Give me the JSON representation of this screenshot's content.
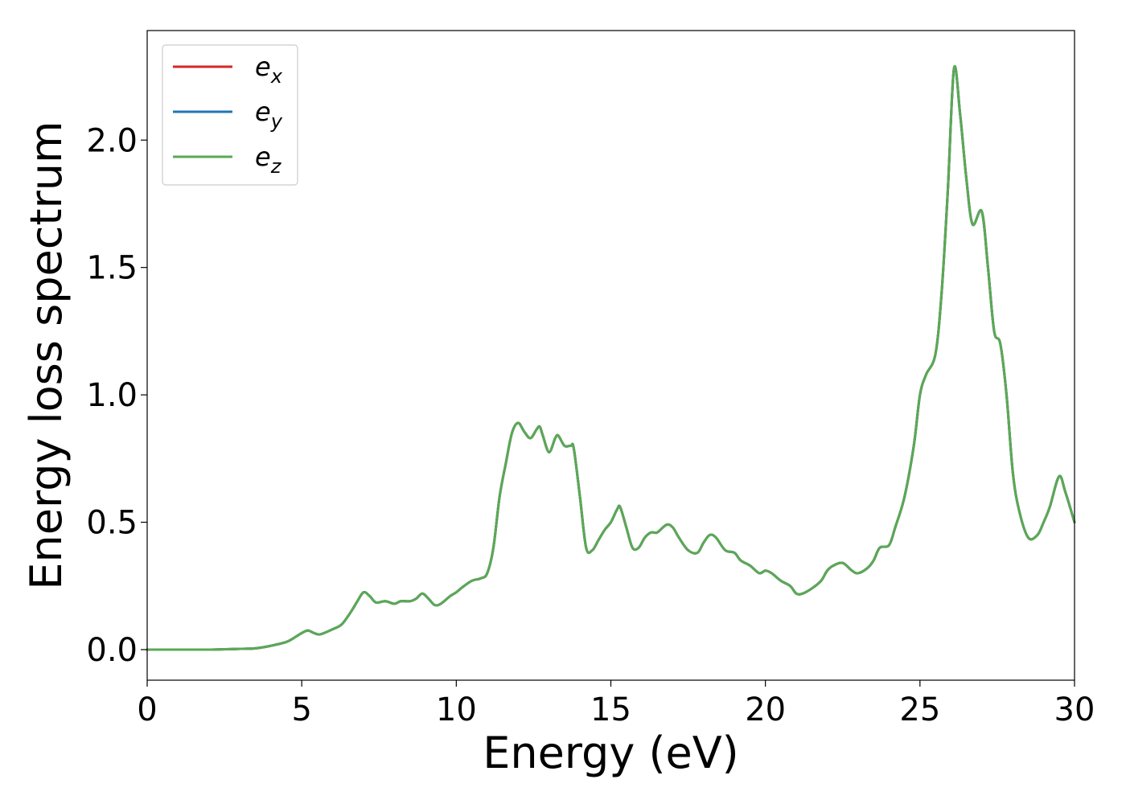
{
  "chart_data": {
    "type": "line",
    "xlabel": "Energy (eV)",
    "ylabel": "Energy loss spectrum",
    "xlim": [
      0,
      30
    ],
    "ylim": [
      -0.12,
      2.43
    ],
    "xticks": [
      0,
      5,
      10,
      15,
      20,
      25,
      30
    ],
    "xtick_labels": [
      "0",
      "5",
      "10",
      "15",
      "20",
      "25",
      "30"
    ],
    "yticks": [
      0.0,
      0.5,
      1.0,
      1.5,
      2.0
    ],
    "ytick_labels": [
      "0.0",
      "0.5",
      "1.0",
      "1.5",
      "2.0"
    ],
    "grid": false,
    "legend_position": "top-left",
    "x": [
      0,
      1,
      2,
      3,
      3.5,
      4,
      4.5,
      4.8,
      5.0,
      5.2,
      5.4,
      5.6,
      6.0,
      6.3,
      6.6,
      6.8,
      7.0,
      7.2,
      7.4,
      7.7,
      8.0,
      8.2,
      8.5,
      8.7,
      8.9,
      9.1,
      9.3,
      9.5,
      9.8,
      10.0,
      10.2,
      10.5,
      10.8,
      11.0,
      11.2,
      11.4,
      11.6,
      11.8,
      12.0,
      12.2,
      12.4,
      12.6,
      12.7,
      12.8,
      13.0,
      13.2,
      13.3,
      13.5,
      13.7,
      13.8,
      14.0,
      14.2,
      14.4,
      14.6,
      14.8,
      15.0,
      15.2,
      15.3,
      15.5,
      15.7,
      15.9,
      16.1,
      16.3,
      16.5,
      16.8,
      17.0,
      17.2,
      17.5,
      17.8,
      18.0,
      18.2,
      18.4,
      18.7,
      19.0,
      19.2,
      19.5,
      19.8,
      20.0,
      20.2,
      20.5,
      20.8,
      21.0,
      21.2,
      21.5,
      21.8,
      22.0,
      22.2,
      22.5,
      22.8,
      23.0,
      23.3,
      23.5,
      23.7,
      24.0,
      24.2,
      24.5,
      24.8,
      25.0,
      25.2,
      25.5,
      25.7,
      25.9,
      26.1,
      26.3,
      26.5,
      26.7,
      27.0,
      27.2,
      27.4,
      27.6,
      27.8,
      28.0,
      28.2,
      28.5,
      28.8,
      29.0,
      29.2,
      29.5,
      29.7,
      30.0
    ],
    "series": [
      {
        "name": "e_x",
        "color": "#d62728",
        "values": [
          0,
          0,
          0,
          0.003,
          0.005,
          0.015,
          0.03,
          0.05,
          0.065,
          0.075,
          0.065,
          0.06,
          0.08,
          0.1,
          0.15,
          0.19,
          0.225,
          0.21,
          0.185,
          0.19,
          0.18,
          0.19,
          0.19,
          0.2,
          0.22,
          0.2,
          0.175,
          0.18,
          0.21,
          0.225,
          0.245,
          0.27,
          0.28,
          0.3,
          0.4,
          0.6,
          0.73,
          0.85,
          0.89,
          0.855,
          0.83,
          0.865,
          0.875,
          0.84,
          0.775,
          0.83,
          0.84,
          0.8,
          0.8,
          0.79,
          0.6,
          0.4,
          0.39,
          0.43,
          0.47,
          0.5,
          0.55,
          0.56,
          0.48,
          0.4,
          0.4,
          0.44,
          0.46,
          0.46,
          0.49,
          0.48,
          0.44,
          0.39,
          0.38,
          0.42,
          0.45,
          0.44,
          0.39,
          0.38,
          0.35,
          0.33,
          0.3,
          0.31,
          0.3,
          0.27,
          0.25,
          0.22,
          0.22,
          0.24,
          0.27,
          0.31,
          0.33,
          0.34,
          0.31,
          0.3,
          0.32,
          0.35,
          0.4,
          0.41,
          0.48,
          0.6,
          0.8,
          1.0,
          1.08,
          1.16,
          1.4,
          1.8,
          2.28,
          2.1,
          1.85,
          1.67,
          1.72,
          1.5,
          1.25,
          1.2,
          1.0,
          0.7,
          0.55,
          0.44,
          0.45,
          0.5,
          0.56,
          0.68,
          0.62,
          0.5
        ]
      },
      {
        "name": "e_y",
        "color": "#1f77b4",
        "values": [
          0,
          0,
          0,
          0.003,
          0.005,
          0.015,
          0.03,
          0.05,
          0.065,
          0.075,
          0.065,
          0.06,
          0.08,
          0.1,
          0.15,
          0.19,
          0.225,
          0.21,
          0.185,
          0.19,
          0.18,
          0.19,
          0.19,
          0.2,
          0.22,
          0.2,
          0.175,
          0.18,
          0.21,
          0.225,
          0.245,
          0.27,
          0.28,
          0.3,
          0.4,
          0.6,
          0.73,
          0.85,
          0.89,
          0.855,
          0.83,
          0.865,
          0.875,
          0.84,
          0.775,
          0.83,
          0.84,
          0.8,
          0.8,
          0.79,
          0.6,
          0.4,
          0.39,
          0.43,
          0.47,
          0.5,
          0.55,
          0.56,
          0.48,
          0.4,
          0.4,
          0.44,
          0.46,
          0.46,
          0.49,
          0.48,
          0.44,
          0.39,
          0.38,
          0.42,
          0.45,
          0.44,
          0.39,
          0.38,
          0.35,
          0.33,
          0.3,
          0.31,
          0.3,
          0.27,
          0.25,
          0.22,
          0.22,
          0.24,
          0.27,
          0.31,
          0.33,
          0.34,
          0.31,
          0.3,
          0.32,
          0.35,
          0.4,
          0.41,
          0.48,
          0.6,
          0.8,
          1.0,
          1.08,
          1.16,
          1.4,
          1.8,
          2.28,
          2.1,
          1.85,
          1.67,
          1.72,
          1.5,
          1.25,
          1.2,
          1.0,
          0.7,
          0.55,
          0.44,
          0.45,
          0.5,
          0.56,
          0.68,
          0.62,
          0.5
        ]
      },
      {
        "name": "e_z",
        "color": "#5aa954",
        "values": [
          0,
          0,
          0,
          0.003,
          0.005,
          0.015,
          0.03,
          0.05,
          0.065,
          0.075,
          0.065,
          0.06,
          0.08,
          0.1,
          0.15,
          0.19,
          0.225,
          0.21,
          0.185,
          0.19,
          0.18,
          0.19,
          0.19,
          0.2,
          0.22,
          0.2,
          0.175,
          0.18,
          0.21,
          0.225,
          0.245,
          0.27,
          0.28,
          0.3,
          0.4,
          0.6,
          0.73,
          0.85,
          0.89,
          0.855,
          0.83,
          0.865,
          0.875,
          0.84,
          0.775,
          0.83,
          0.84,
          0.8,
          0.8,
          0.79,
          0.6,
          0.4,
          0.39,
          0.43,
          0.47,
          0.5,
          0.55,
          0.56,
          0.48,
          0.4,
          0.4,
          0.44,
          0.46,
          0.46,
          0.49,
          0.48,
          0.44,
          0.39,
          0.38,
          0.42,
          0.45,
          0.44,
          0.39,
          0.38,
          0.35,
          0.33,
          0.3,
          0.31,
          0.3,
          0.27,
          0.25,
          0.22,
          0.22,
          0.24,
          0.27,
          0.31,
          0.33,
          0.34,
          0.31,
          0.3,
          0.32,
          0.35,
          0.4,
          0.41,
          0.48,
          0.6,
          0.8,
          1.0,
          1.08,
          1.16,
          1.4,
          1.8,
          2.28,
          2.1,
          1.85,
          1.67,
          1.72,
          1.5,
          1.25,
          1.2,
          1.0,
          0.7,
          0.55,
          0.44,
          0.45,
          0.5,
          0.56,
          0.68,
          0.62,
          0.5
        ]
      }
    ],
    "legend": [
      {
        "base": "e",
        "sub": "x",
        "color": "#d62728"
      },
      {
        "base": "e",
        "sub": "y",
        "color": "#1f77b4"
      },
      {
        "base": "e",
        "sub": "z",
        "color": "#5aa954"
      }
    ]
  }
}
